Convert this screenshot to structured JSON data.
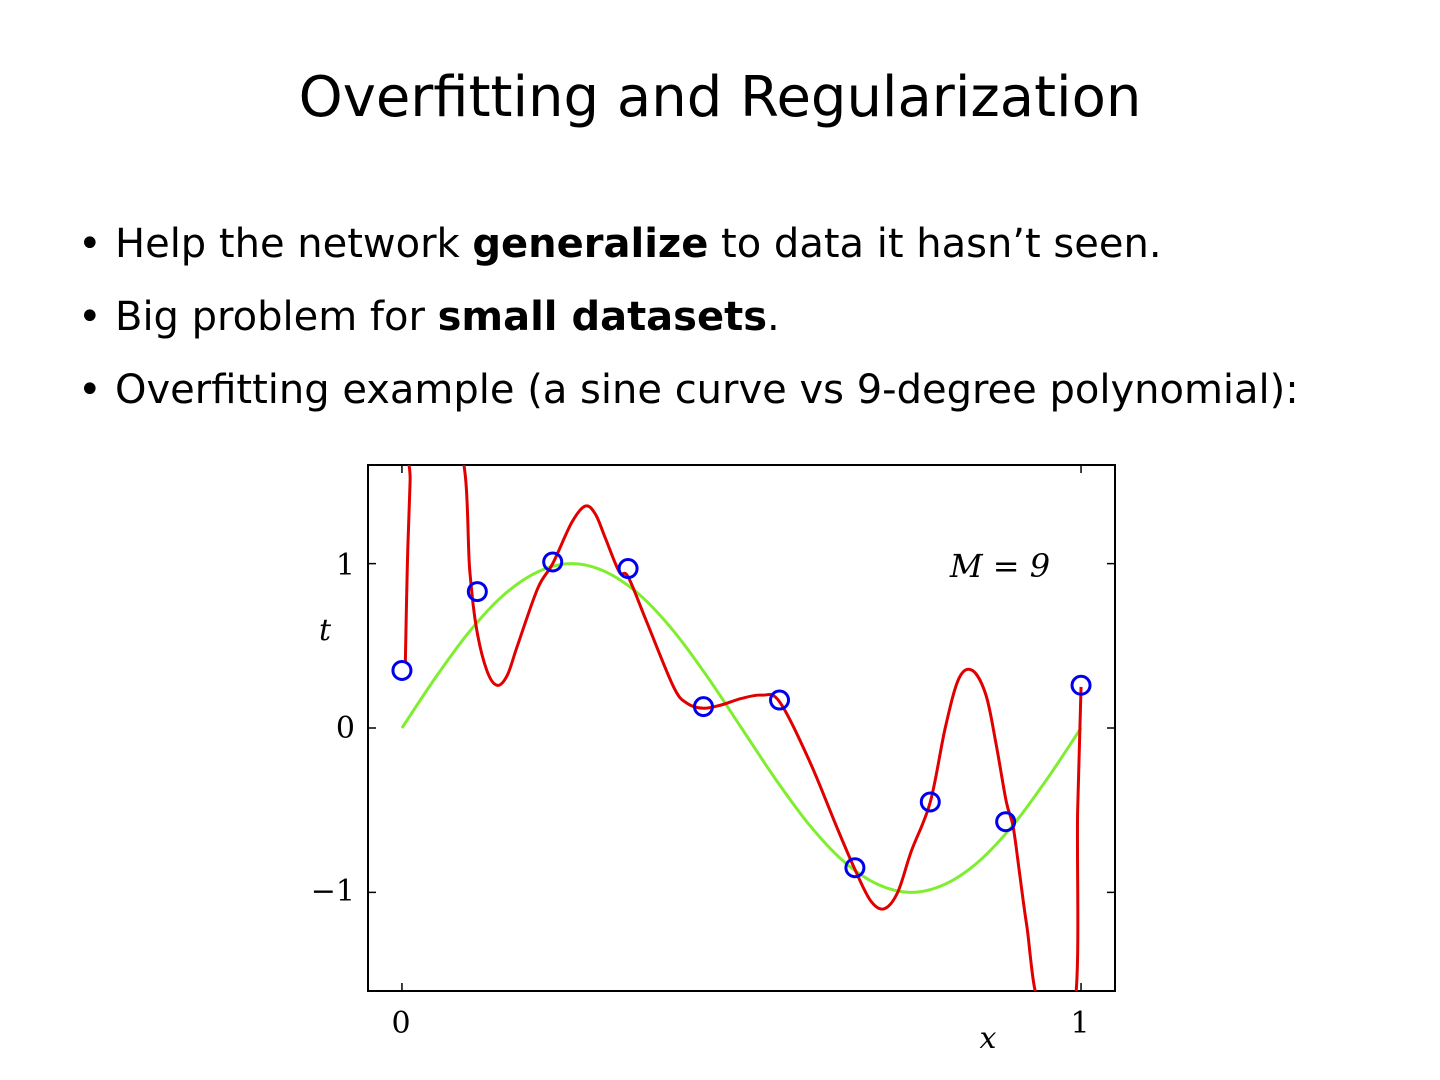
{
  "title": "Overfitting and Regularization",
  "bullet_glyph": "•",
  "bullets": [
    {
      "before": "Help the network ",
      "bold": "generalize",
      "after": " to data it hasn’t seen."
    },
    {
      "before": "Big problem for ",
      "bold": "small datasets",
      "after": "."
    },
    {
      "before": "Overfitting example (a sine curve vs 9-degree polynomial):",
      "bold": "",
      "after": ""
    }
  ],
  "colors": {
    "true_curve": "#80ee30",
    "fit_curve": "#e00000",
    "points": "#0000ee",
    "axes": "#000000"
  },
  "chart_data": {
    "type": "line",
    "xlim": [
      -0.05,
      1.05
    ],
    "ylim": [
      -1.6,
      1.6
    ],
    "x_ticks": [
      0,
      1
    ],
    "x_tick_labels": [
      "0",
      "1"
    ],
    "y_ticks": [
      -1,
      0,
      1
    ],
    "y_tick_labels": [
      "−1",
      "0",
      "1"
    ],
    "xlabel": "x",
    "ylabel": "t",
    "annotation": "M = 9",
    "grid": false,
    "series": [
      {
        "kind": "curve",
        "x": [
          0,
          0.05,
          0.1,
          0.15,
          0.2,
          0.25,
          0.3,
          0.35,
          0.4,
          0.45,
          0.5,
          0.55,
          0.6,
          0.65,
          0.7,
          0.75,
          0.8,
          0.85,
          0.9,
          0.95,
          1
        ],
        "values": [
          0,
          0.31,
          0.59,
          0.81,
          0.95,
          1,
          0.95,
          0.81,
          0.59,
          0.31,
          0,
          -0.31,
          -0.59,
          -0.81,
          -0.95,
          -1,
          -0.95,
          -0.81,
          -0.59,
          -0.31,
          0
        ]
      },
      {
        "kind": "curve",
        "x": [
          0.005,
          0.008,
          0.012,
          0.015,
          0.085,
          0.1,
          0.11,
          0.125,
          0.14,
          0.155,
          0.17,
          0.2,
          0.222,
          0.25,
          0.27,
          0.285,
          0.3,
          0.32,
          0.333,
          0.36,
          0.4,
          0.42,
          0.444,
          0.47,
          0.5,
          0.53,
          0.556,
          0.6,
          0.64,
          0.667,
          0.69,
          0.71,
          0.73,
          0.75,
          0.778,
          0.8,
          0.82,
          0.84,
          0.86,
          0.875,
          0.89,
          0.9,
          0.91,
          0.92,
          0.94,
          0.99,
          0.995,
          1
        ],
        "values": [
          0.4,
          1.0,
          1.5,
          1.7,
          1.7,
          0.95,
          0.6,
          0.35,
          0.26,
          0.32,
          0.5,
          0.85,
          1.0,
          1.25,
          1.35,
          1.3,
          1.15,
          0.95,
          0.92,
          0.65,
          0.25,
          0.15,
          0.12,
          0.14,
          0.18,
          0.2,
          0.16,
          -0.2,
          -0.6,
          -0.86,
          -1.05,
          -1.1,
          -1.0,
          -0.75,
          -0.45,
          0.0,
          0.3,
          0.35,
          0.2,
          -0.1,
          -0.45,
          -0.6,
          -0.9,
          -1.2,
          -1.7,
          -1.7,
          -0.5,
          0.25
        ]
      },
      {
        "kind": "points",
        "x": [
          0,
          0.111,
          0.222,
          0.333,
          0.444,
          0.556,
          0.667,
          0.778,
          0.889,
          1
        ],
        "values": [
          0.35,
          0.83,
          1.01,
          0.97,
          0.13,
          0.17,
          -0.85,
          -0.45,
          -0.57,
          0.26
        ]
      }
    ]
  }
}
